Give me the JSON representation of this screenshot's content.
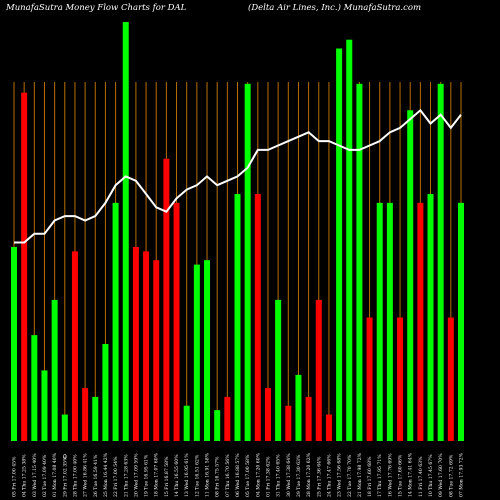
{
  "header": {
    "left": "MunafaSutra  Money Flow  Charts for DAL",
    "right": "(Delta  Air  Lines,  Inc.)  MunafaSutra.com"
  },
  "colors": {
    "background": "#000000",
    "up": "#00ff00",
    "down": "#ff0000",
    "grid": "#b86e00",
    "line": "#ffffff"
  },
  "chart_data": {
    "type": "bar",
    "title": "MunafaSutra  Money Flow  Charts for DAL",
    "zero_label": "0",
    "ylim": [
      0,
      100
    ],
    "categories": [
      "05 Fri 17.00 45%",
      "04 Thu 17.25 38%",
      "03 Wed 17.15 40%",
      "02 Tue 17.09 40%",
      "01 Mon 17.08 40%",
      "29 Fri 17.02 35%",
      "28 Thu 17.00 40%",
      "27 Wed 16.86 41%",
      "26 Tue 16.59 41%",
      "25 Mon 16.44 42%",
      "22 Fri 17.00 54%",
      "21 Thu 17.28 63%",
      "20 Wed 17.09 59%",
      "19 Tue 16.95 61%",
      "18 Mon 17.07 60%",
      "15 Fri 16.87 58%",
      "14 Thu 16.55 60%",
      "13 Wed 16.95 61%",
      "12 Tue 16.51 62%",
      "11 Mon 16.91 58%",
      "08 Fri 16.75 57%",
      "07 Thu 16.70 56%",
      "06 Wed 16.88 57%",
      "05 Tue 17.00 58%",
      "04 Mon 17.20 60%",
      "01 Fri 17.38 62%",
      "31 Thu 17.40 65%",
      "30 Wed 17.38 64%",
      "29 Tue 17.30 63%",
      "28 Mon 17.20 62%",
      "25 Fri 17.36 64%",
      "24 Thu 17.47 66%",
      "23 Wed 17.56 68%",
      "22 Tue 17.70 70%",
      "21 Mon 17.98 72%",
      "18 Fri 17.60 68%",
      "17 Thu 17.95 71%",
      "16 Wed 17.76 69%",
      "15 Tue 17.60 66%",
      "14 Mon 17.41 64%",
      "11 Fri 17.40 63%",
      "10 Thu 17.45 67%",
      "09 Wed 17.60 70%",
      "08 Tue 17.72 69%",
      "07 Mon 17.93 72%"
    ],
    "bar_heights": [
      44,
      79,
      24,
      16,
      32,
      6,
      43,
      12,
      10,
      22,
      54,
      95,
      44,
      43,
      41,
      64,
      54,
      8,
      40,
      41,
      7,
      10,
      56,
      81,
      56,
      12,
      32,
      8,
      15,
      10,
      32,
      6,
      89,
      91,
      81,
      28,
      54,
      54,
      28,
      75,
      54,
      56,
      81,
      28,
      54
    ],
    "bar_colors": [
      "up",
      "down",
      "up",
      "up",
      "up",
      "up",
      "down",
      "down",
      "up",
      "up",
      "up",
      "up",
      "down",
      "down",
      "down",
      "down",
      "down",
      "up",
      "up",
      "up",
      "up",
      "down",
      "up",
      "up",
      "down",
      "down",
      "up",
      "down",
      "up",
      "down",
      "down",
      "down",
      "up",
      "up",
      "up",
      "down",
      "up",
      "up",
      "down",
      "up",
      "down",
      "up",
      "up",
      "down",
      "up"
    ],
    "line_values": [
      45,
      45,
      47,
      47,
      50,
      51,
      51,
      50,
      51,
      54,
      58,
      60,
      59,
      56,
      53,
      52,
      55,
      57,
      58,
      60,
      58,
      59,
      60,
      62,
      66,
      66,
      67,
      68,
      69,
      70,
      68,
      68,
      67,
      66,
      66,
      67,
      68,
      70,
      71,
      73,
      75,
      72,
      74,
      71,
      74
    ],
    "series": [
      {
        "name": "",
        "values": [
          44,
          79,
          24,
          16,
          32,
          6,
          43,
          12,
          10,
          22,
          54,
          95,
          44,
          43,
          41,
          64,
          54,
          8,
          40,
          41,
          7,
          10,
          56,
          81,
          56,
          12,
          32,
          8,
          15,
          10,
          32,
          6,
          89,
          91,
          81,
          28,
          54,
          54,
          28,
          75,
          54,
          56,
          81,
          28,
          54
        ]
      },
      {
        "name": "",
        "values": [
          45,
          45,
          47,
          47,
          50,
          51,
          51,
          50,
          51,
          54,
          58,
          60,
          59,
          56,
          53,
          52,
          55,
          57,
          58,
          60,
          58,
          59,
          60,
          62,
          66,
          66,
          67,
          68,
          69,
          70,
          68,
          68,
          67,
          66,
          66,
          67,
          68,
          70,
          71,
          73,
          75,
          72,
          74,
          71,
          74
        ]
      }
    ],
    "grid": true
  }
}
